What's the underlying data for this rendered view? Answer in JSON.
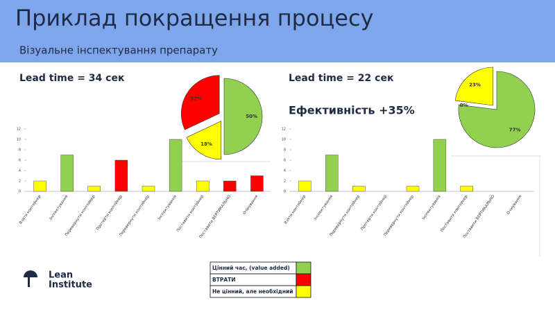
{
  "title": "Приклад покращення процесу",
  "subtitle": "Візуальне інспектування препарату",
  "chart_data": [
    {
      "type": "bar",
      "title": "Lead time = 34 сек",
      "categories": [
        "Взяти контейнер",
        "Інспектування",
        "Перевернути контейнер",
        "Протерти контейнер",
        "Перевернути контейнер",
        "Інспектування",
        "Поставити контейнер",
        "Поставити ВЕРТИКАЛЬНО",
        "Очікування"
      ],
      "values": [
        2,
        7,
        1,
        6,
        1,
        10,
        2,
        2,
        3
      ],
      "colors": [
        "#ffff00",
        "#92d050",
        "#ffff00",
        "#ff0000",
        "#ffff00",
        "#92d050",
        "#ffff00",
        "#ff0000",
        "#ff0000"
      ],
      "ylim": [
        0,
        12
      ],
      "yticks": [
        0,
        2,
        4,
        6,
        8,
        10,
        12
      ]
    },
    {
      "type": "pie",
      "values": [
        50,
        18,
        32
      ],
      "value_labels": [
        "50%",
        "18%",
        "32%"
      ],
      "colors": [
        "#92d050",
        "#ffff00",
        "#ff0000"
      ]
    },
    {
      "type": "bar",
      "title": "Lead time = 22 сек",
      "annotation": "Ефективність +35%",
      "categories": [
        "Взяти контейнер",
        "Інспектування",
        "Перевернути контейнер",
        "Протерти контейнер",
        "Перевернути контейнер",
        "Інспектування",
        "Поставити контейнер",
        "Поставити ВЕРТИКАЛЬНО",
        "Очікування"
      ],
      "values": [
        2,
        7,
        1,
        0,
        1,
        10,
        1,
        0,
        0
      ],
      "colors": [
        "#ffff00",
        "#92d050",
        "#ffff00",
        "#ff0000",
        "#ffff00",
        "#92d050",
        "#ffff00",
        "#ff0000",
        "#ff0000"
      ],
      "ylim": [
        0,
        12
      ],
      "yticks": [
        0,
        2,
        4,
        6,
        8,
        10,
        12
      ]
    },
    {
      "type": "pie",
      "values": [
        77,
        0,
        23
      ],
      "value_labels": [
        "77%",
        "0%",
        "23%"
      ],
      "colors": [
        "#92d050",
        "#ff0000",
        "#ffff00"
      ]
    }
  ],
  "legend": [
    {
      "label": "Цінний час, (value added)",
      "color": "#92d050"
    },
    {
      "label": "ВТРАТИ",
      "color": "#ff0000"
    },
    {
      "label": "Не цінний, але необхідний",
      "color": "#ffff00"
    }
  ],
  "logo": {
    "line1": "Lean",
    "line2": "Institute"
  }
}
